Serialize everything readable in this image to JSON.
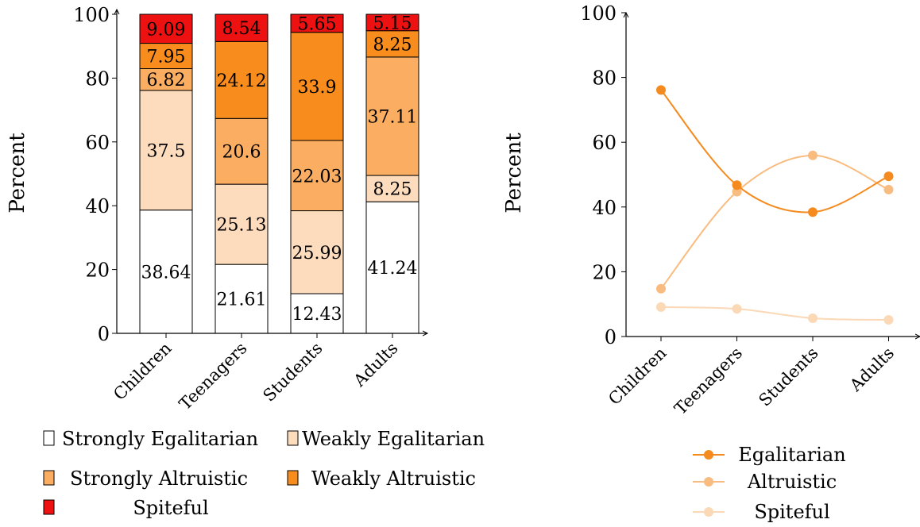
{
  "colors": {
    "strongly_egalitarian": "#ffffff",
    "weakly_egalitarian": "#fddcbd",
    "strongly_altruistic": "#fbae62",
    "weakly_altruistic": "#f88c1c",
    "spiteful": "#ee1111",
    "line_egalitarian": "#f58b1f",
    "line_altruistic": "#f9bc80",
    "line_spiteful": "#fbd8b6"
  },
  "chart_data": [
    {
      "type": "bar",
      "stacked": true,
      "ylabel": "Percent",
      "ylim": [
        0,
        100
      ],
      "yticks": [
        0,
        20,
        40,
        60,
        80,
        100
      ],
      "categories": [
        "Children",
        "Teenagers",
        "Students",
        "Adults"
      ],
      "series": [
        {
          "name": "Strongly Egalitarian",
          "color_key": "strongly_egalitarian",
          "values": [
            38.64,
            21.61,
            12.43,
            41.24
          ]
        },
        {
          "name": "Weakly Egalitarian",
          "color_key": "weakly_egalitarian",
          "values": [
            37.5,
            25.13,
            25.99,
            8.25
          ]
        },
        {
          "name": "Strongly Altruistic",
          "color_key": "strongly_altruistic",
          "values": [
            6.82,
            20.6,
            22.03,
            37.11
          ]
        },
        {
          "name": "Weakly Altruistic",
          "color_key": "weakly_altruistic",
          "values": [
            7.95,
            24.12,
            33.9,
            8.25
          ]
        },
        {
          "name": "Spiteful",
          "color_key": "spiteful",
          "values": [
            9.09,
            8.54,
            5.65,
            5.15
          ]
        }
      ],
      "legend": "bottom"
    },
    {
      "type": "line",
      "smooth": true,
      "ylabel": "Percent",
      "ylim": [
        0,
        100
      ],
      "yticks": [
        0,
        20,
        40,
        60,
        80,
        100
      ],
      "categories": [
        "Children",
        "Teenagers",
        "Students",
        "Adults"
      ],
      "series": [
        {
          "name": "Egalitarian",
          "color_key": "line_egalitarian",
          "values": [
            76.14,
            46.74,
            38.42,
            49.49
          ]
        },
        {
          "name": "Altruistic",
          "color_key": "line_altruistic",
          "values": [
            14.77,
            44.72,
            55.93,
            45.36
          ]
        },
        {
          "name": "Spiteful",
          "color_key": "line_spiteful",
          "values": [
            9.09,
            8.54,
            5.65,
            5.15
          ]
        }
      ],
      "legend": "bottom"
    }
  ]
}
